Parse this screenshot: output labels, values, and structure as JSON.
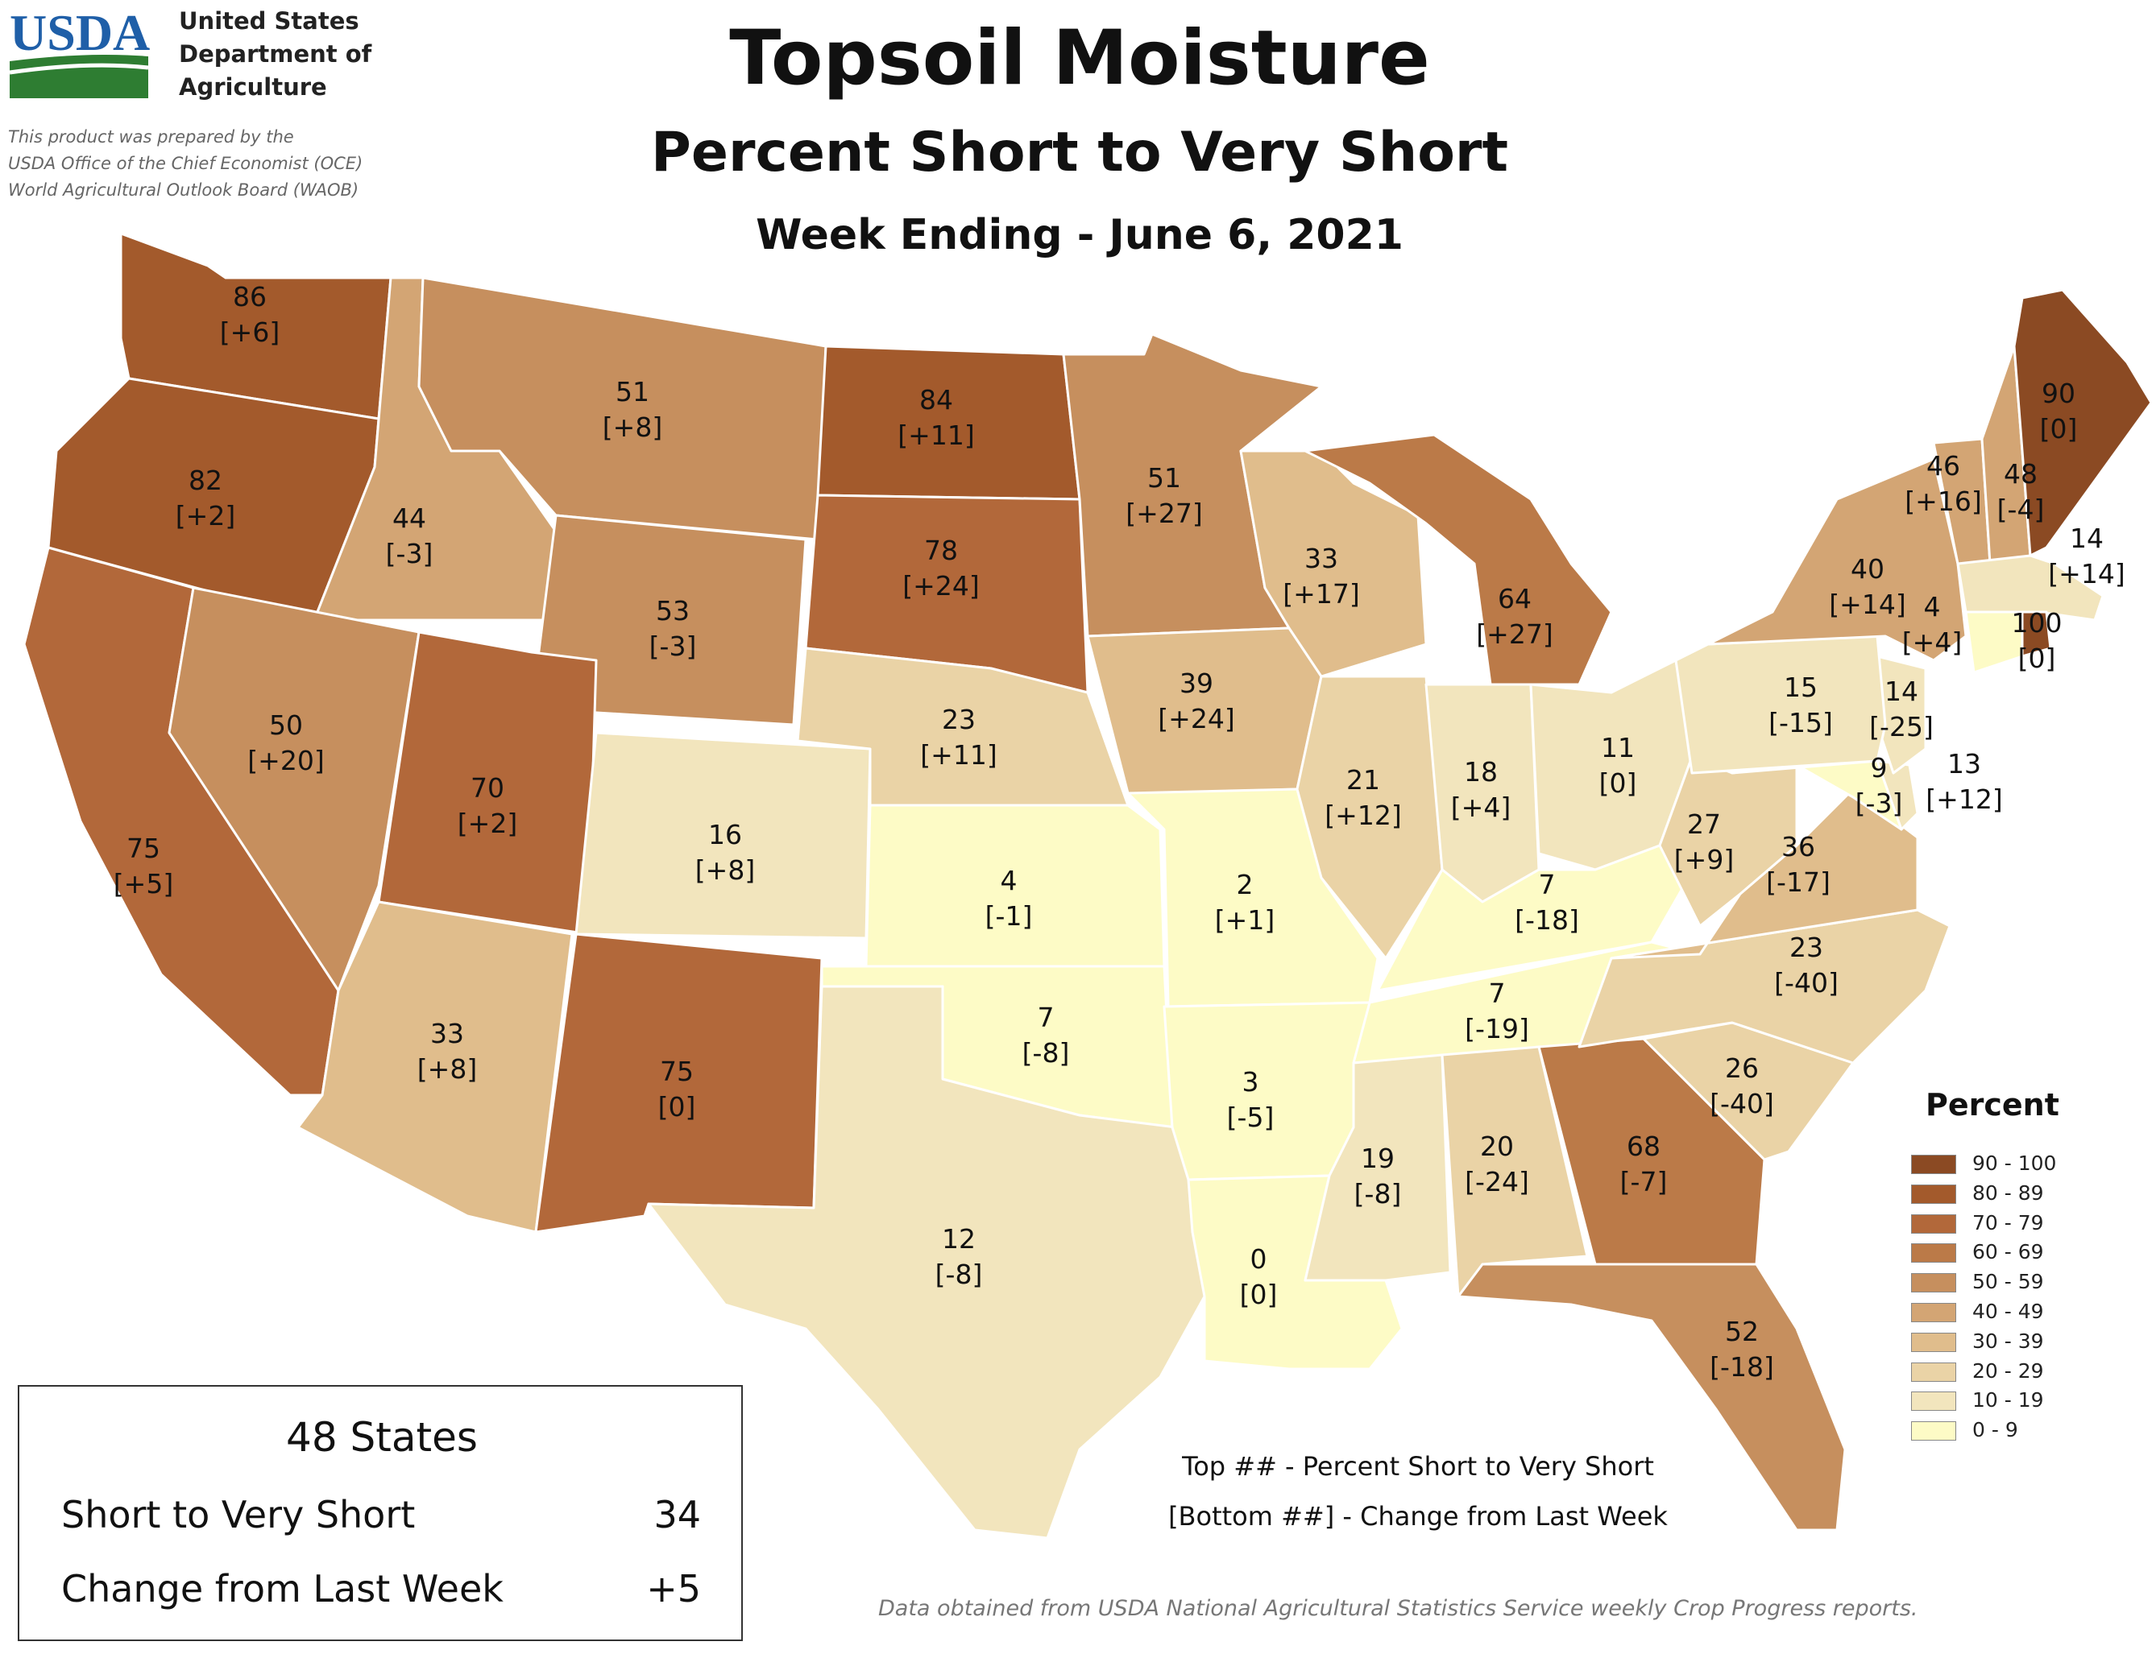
{
  "header": {
    "title": "Topsoil Moisture",
    "subtitle": "Percent Short to Very Short",
    "week": "Week Ending - June 6, 2021"
  },
  "agency": {
    "logo_text": "USDA",
    "lines": [
      "United States",
      "Department of",
      "Agriculture"
    ],
    "prepared_by": [
      "This product was prepared by the",
      "USDA Office of the Chief Economist (OCE)",
      "World Agricultural Outlook Board (WAOB)"
    ]
  },
  "summary": {
    "title": "48 States",
    "short_label": "Short to Very Short",
    "short_value": "34",
    "change_label": "Change from Last Week",
    "change_value": "+5"
  },
  "note": {
    "line1": "Top ## - Percent Short to Very Short",
    "line2": "[Bottom ##] - Change from Last Week"
  },
  "source": "Data obtained from USDA National Agricultural Statistics Service weekly Crop Progress reports.",
  "legend": {
    "title": "Percent",
    "items": [
      {
        "label": "90 - 100",
        "color": "#8b4a23"
      },
      {
        "label": "80 - 89",
        "color": "#a35a2c"
      },
      {
        "label": "70 - 79",
        "color": "#b2683a"
      },
      {
        "label": "60 - 69",
        "color": "#bb7a48"
      },
      {
        "label": "50 - 59",
        "color": "#c68f5e"
      },
      {
        "label": "40 - 49",
        "color": "#d3a574"
      },
      {
        "label": "30 - 39",
        "color": "#e0bd8c"
      },
      {
        "label": "20 - 29",
        "color": "#ead3a6"
      },
      {
        "label": "10 - 19",
        "color": "#f2e5bd"
      },
      {
        "label": "0 - 9",
        "color": "#fdfbc6"
      }
    ]
  },
  "states": [
    {
      "id": "wa",
      "value": "86",
      "change": "[+6]"
    },
    {
      "id": "or",
      "value": "82",
      "change": "[+2]"
    },
    {
      "id": "ca",
      "value": "75",
      "change": "[+5]"
    },
    {
      "id": "id",
      "value": "44",
      "change": "[-3]"
    },
    {
      "id": "nv",
      "value": "50",
      "change": "[+20]"
    },
    {
      "id": "mt",
      "value": "51",
      "change": "[+8]"
    },
    {
      "id": "wy",
      "value": "53",
      "change": "[-3]"
    },
    {
      "id": "ut",
      "value": "70",
      "change": "[+2]"
    },
    {
      "id": "az",
      "value": "33",
      "change": "[+8]"
    },
    {
      "id": "co",
      "value": "16",
      "change": "[+8]"
    },
    {
      "id": "nm",
      "value": "75",
      "change": "[0]"
    },
    {
      "id": "nd",
      "value": "84",
      "change": "[+11]"
    },
    {
      "id": "sd",
      "value": "78",
      "change": "[+24]"
    },
    {
      "id": "ne",
      "value": "23",
      "change": "[+11]"
    },
    {
      "id": "ks",
      "value": "4",
      "change": "[-1]"
    },
    {
      "id": "ok",
      "value": "7",
      "change": "[-8]"
    },
    {
      "id": "tx",
      "value": "12",
      "change": "[-8]"
    },
    {
      "id": "mn",
      "value": "51",
      "change": "[+27]"
    },
    {
      "id": "ia",
      "value": "39",
      "change": "[+24]"
    },
    {
      "id": "mo",
      "value": "2",
      "change": "[+1]"
    },
    {
      "id": "ar",
      "value": "3",
      "change": "[-5]"
    },
    {
      "id": "la",
      "value": "0",
      "change": "[0]"
    },
    {
      "id": "wi",
      "value": "33",
      "change": "[+17]"
    },
    {
      "id": "il",
      "value": "21",
      "change": "[+12]"
    },
    {
      "id": "mi",
      "value": "64",
      "change": "[+27]"
    },
    {
      "id": "in",
      "value": "18",
      "change": "[+4]"
    },
    {
      "id": "oh",
      "value": "11",
      "change": "[0]"
    },
    {
      "id": "ky",
      "value": "7",
      "change": "[-18]"
    },
    {
      "id": "tn",
      "value": "7",
      "change": "[-19]"
    },
    {
      "id": "ms",
      "value": "19",
      "change": "[-8]"
    },
    {
      "id": "al",
      "value": "20",
      "change": "[-24]"
    },
    {
      "id": "ga",
      "value": "68",
      "change": "[-7]"
    },
    {
      "id": "fl",
      "value": "52",
      "change": "[-18]"
    },
    {
      "id": "sc",
      "value": "26",
      "change": "[-40]"
    },
    {
      "id": "nc",
      "value": "23",
      "change": "[-40]"
    },
    {
      "id": "va",
      "value": "36",
      "change": "[-17]"
    },
    {
      "id": "wv",
      "value": "27",
      "change": "[+9]"
    },
    {
      "id": "md",
      "value": "9",
      "change": "[-3]"
    },
    {
      "id": "de",
      "value": "13",
      "change": "[+12]"
    },
    {
      "id": "nj",
      "value": "14",
      "change": "[-25]"
    },
    {
      "id": "pa",
      "value": "15",
      "change": "[-15]"
    },
    {
      "id": "ny",
      "value": "40",
      "change": "[+14]"
    },
    {
      "id": "vt",
      "value": "46",
      "change": "[+16]"
    },
    {
      "id": "nh",
      "value": "48",
      "change": "[-4]"
    },
    {
      "id": "me",
      "value": "90",
      "change": "[0]"
    },
    {
      "id": "ma",
      "value": "14",
      "change": "[+14]"
    },
    {
      "id": "ct",
      "value": "4",
      "change": "[+4]"
    },
    {
      "id": "ri",
      "value": "100",
      "change": "[0]"
    }
  ]
}
